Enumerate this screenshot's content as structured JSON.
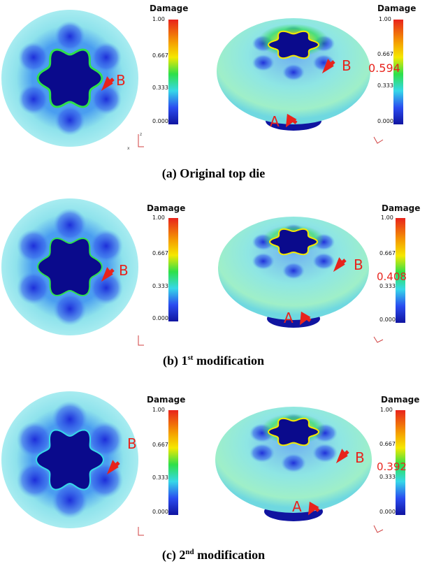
{
  "colors": {
    "label_red": "#e8231c",
    "scale_high": "#e8231c",
    "scale_mid_high": "#f5e800",
    "scale_mid": "#2ee04a",
    "scale_mid_low": "#36d8e8",
    "scale_low": "#1014a0",
    "background": "#ffffff"
  },
  "legend": {
    "title": "Damage",
    "ticks": [
      "1.00",
      "0.667",
      "0.333",
      "0.000"
    ]
  },
  "markers": {
    "a": "A",
    "b": "B"
  },
  "axis_triad": {
    "z": "z",
    "x": "x"
  },
  "panels": [
    {
      "caption_pre": "(a) Original top die",
      "caption_sup": "",
      "caption_post": "",
      "damage_value": "0.594"
    },
    {
      "caption_pre": "(b) 1",
      "caption_sup": "st",
      "caption_post": " modification",
      "damage_value": "0.408"
    },
    {
      "caption_pre": "(c) 2",
      "caption_sup": "nd",
      "caption_post": " modification",
      "damage_value": "0.392"
    }
  ]
}
